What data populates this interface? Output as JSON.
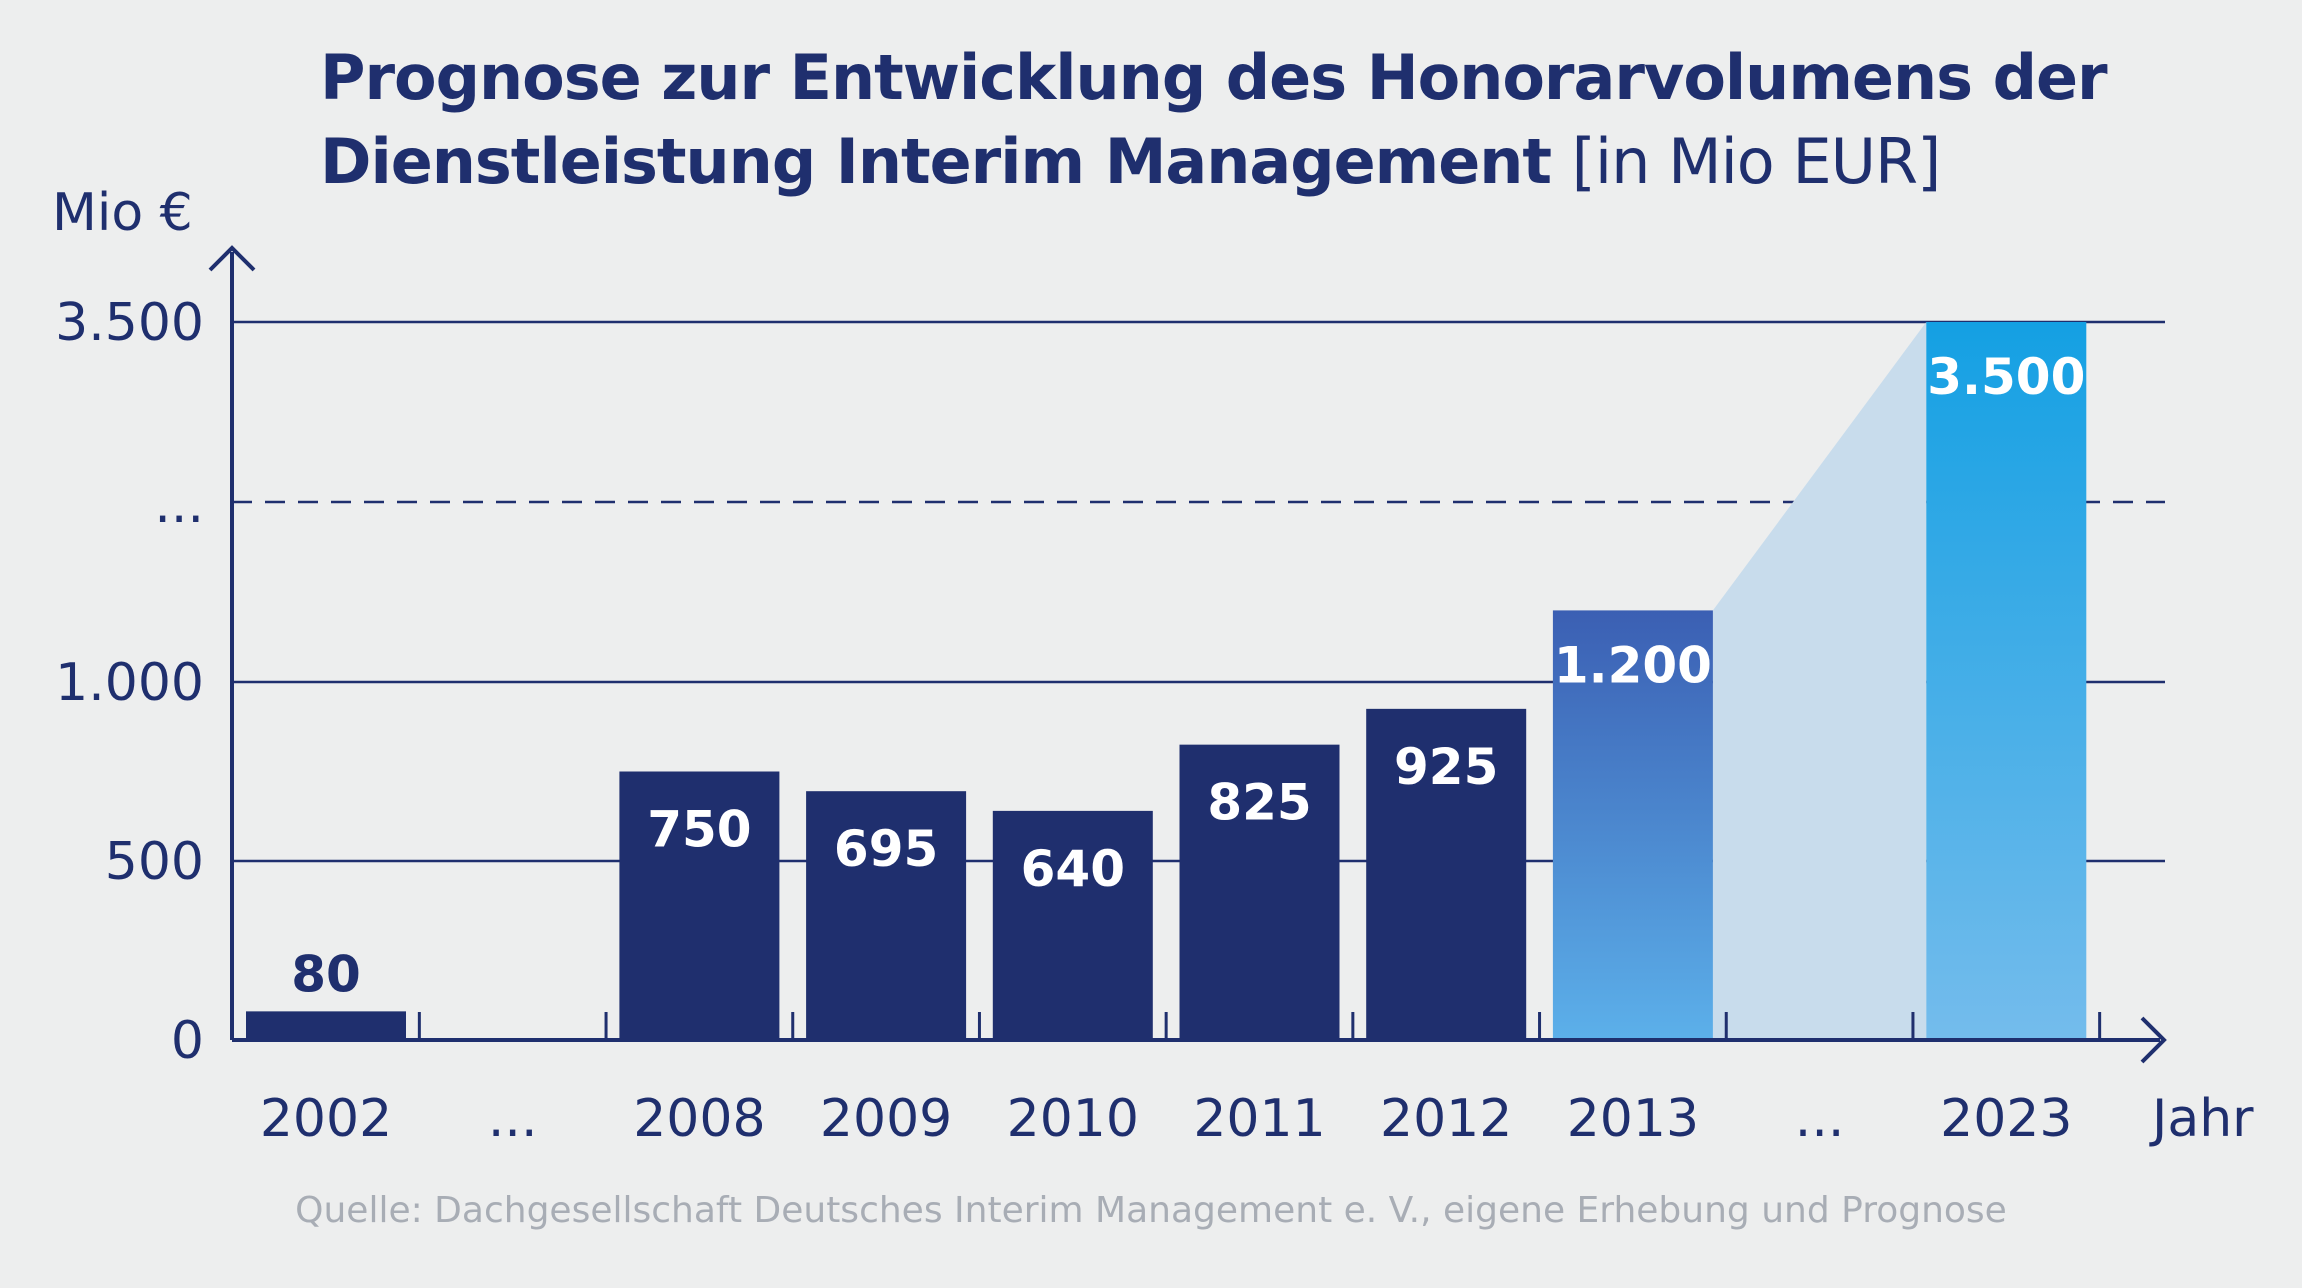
{
  "title": {
    "main": "Prognose zur Entwicklung des Honorarvolumens der Dienstleistung Interim Management",
    "unit": "[in Mio EUR]"
  },
  "source": "Quelle: Dachgesellschaft Deutsches Interim Management e. V., eigene Erhebung und Prognose",
  "colors": {
    "background": "#edeeee",
    "bar_actual": "#1f2f6e",
    "bar_2013_top": "#3b5fb3",
    "bar_2013_bottom": "#5cb0ea",
    "bar_2023_top": "#14a0e3",
    "bar_2023_bottom": "#74bcec",
    "forecast_area": "#c8dcec",
    "axis": "#1f2f6e",
    "label_dark": "#1f2f6e",
    "label_light": "#ffffff",
    "source_text": "#a8adb5"
  },
  "chart_data": {
    "type": "bar",
    "title": "Prognose zur Entwicklung des Honorarvolumens der Dienstleistung Interim Management [in Mio EUR]",
    "ylabel": "Mio €",
    "xlabel": "Jahr",
    "ylim": [
      0,
      3500
    ],
    "broken_axis": true,
    "categories": [
      "2002",
      "...",
      "2008",
      "2009",
      "2010",
      "2011",
      "2012",
      "2013",
      "...",
      "2023"
    ],
    "values": [
      80,
      null,
      750,
      695,
      640,
      825,
      925,
      1200,
      null,
      3500
    ],
    "data_labels": [
      "80",
      "",
      "750",
      "695",
      "640",
      "825",
      "925",
      "1.200",
      "",
      "3.500"
    ],
    "bar_styles": [
      "actual",
      "none",
      "actual",
      "actual",
      "actual",
      "actual",
      "actual",
      "forecast_2013",
      "none",
      "forecast_2023"
    ],
    "y_ticks": [
      {
        "value": 0,
        "label": "0"
      },
      {
        "value": 500,
        "label": "500"
      },
      {
        "value": 1000,
        "label": "1.000"
      },
      {
        "value": "break",
        "label": "..."
      },
      {
        "value": 3500,
        "label": "3.500"
      }
    ],
    "grid": true
  }
}
